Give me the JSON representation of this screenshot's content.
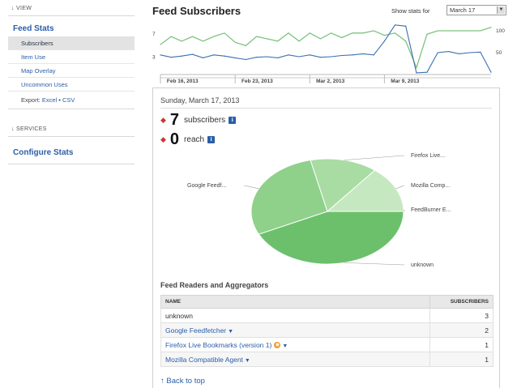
{
  "sidebar": {
    "view_header": "↓ VIEW",
    "feed_stats": "Feed Stats",
    "items": [
      {
        "label": "Subscribers"
      },
      {
        "label": "Item Use"
      },
      {
        "label": "Map Overlay"
      },
      {
        "label": "Uncommon Uses"
      }
    ],
    "export_label": "Export:",
    "export_excel": "Excel",
    "export_sep": " • ",
    "export_csv": "CSV",
    "services_header": "↓ SERVICES",
    "configure_stats": "Configure Stats"
  },
  "header": {
    "title": "Feed Subscribers",
    "show_stats_label": "Show stats for",
    "selected_date": "March 17"
  },
  "chart_data": {
    "type": "line",
    "left_axis_ticks": [
      "7",
      "3"
    ],
    "right_axis_ticks": [
      "100",
      "50"
    ],
    "x_labels": [
      "Feb 16, 2013",
      "Feb 23, 2013",
      "Mar 2, 2013",
      "Mar 9, 2013"
    ],
    "series": [
      {
        "color": "#7dc47f",
        "values": [
          5.2,
          6.6,
          5.8,
          6.6,
          5.8,
          6.6,
          7.2,
          5.6,
          5.0,
          6.6,
          6.2,
          5.8,
          7.2,
          5.8,
          7.2,
          6.2,
          7.2,
          6.4,
          7.2,
          7.2,
          7.6,
          6.8,
          7.2,
          5.8,
          1.2,
          7.0,
          7.6,
          7.6,
          7.6,
          7.6,
          7.6,
          8.2
        ]
      },
      {
        "color": "#3a6fb0",
        "values": [
          3.4,
          3.0,
          3.2,
          3.5,
          2.9,
          3.4,
          3.2,
          2.9,
          2.6,
          3.0,
          3.1,
          2.9,
          3.4,
          3.1,
          3.4,
          3.0,
          3.1,
          3.3,
          3.4,
          3.6,
          3.4,
          5.8,
          8.6,
          8.4,
          0.3,
          0.4,
          3.8,
          4.0,
          3.6,
          3.8,
          3.9,
          0.4
        ]
      }
    ]
  },
  "detail": {
    "date": "Sunday, March 17, 2013",
    "subscribers_value": "7",
    "subscribers_label": "subscribers",
    "reach_value": "0",
    "reach_label": "reach",
    "info_glyph": "i"
  },
  "pie": {
    "slices": [
      {
        "label": "unknown",
        "value": 3,
        "color": "#6cc06c"
      },
      {
        "label": "Google Feedf...",
        "value": 2,
        "color": "#8fd08a"
      },
      {
        "label": "Firefox Live...",
        "value": 1,
        "color": "#a9dca3"
      },
      {
        "label": "Mozilla Comp...",
        "value": 1,
        "color": "#c6e8c0"
      },
      {
        "label": "FeedBurner E...",
        "value": 0,
        "color": "#dff2da"
      }
    ]
  },
  "readers": {
    "title": "Feed Readers and Aggregators",
    "col_name": "NAME",
    "col_subscribers": "SUBSCRIBERS",
    "rows": [
      {
        "name": "unknown",
        "value": "3"
      },
      {
        "name": "Google Feedfetcher",
        "value": "2"
      },
      {
        "name": "Firefox Live Bookmarks (version 1)",
        "value": "1"
      },
      {
        "name": "Mozilla Compatible Agent",
        "value": "1"
      }
    ]
  },
  "back_to_top": "↑ Back to top"
}
